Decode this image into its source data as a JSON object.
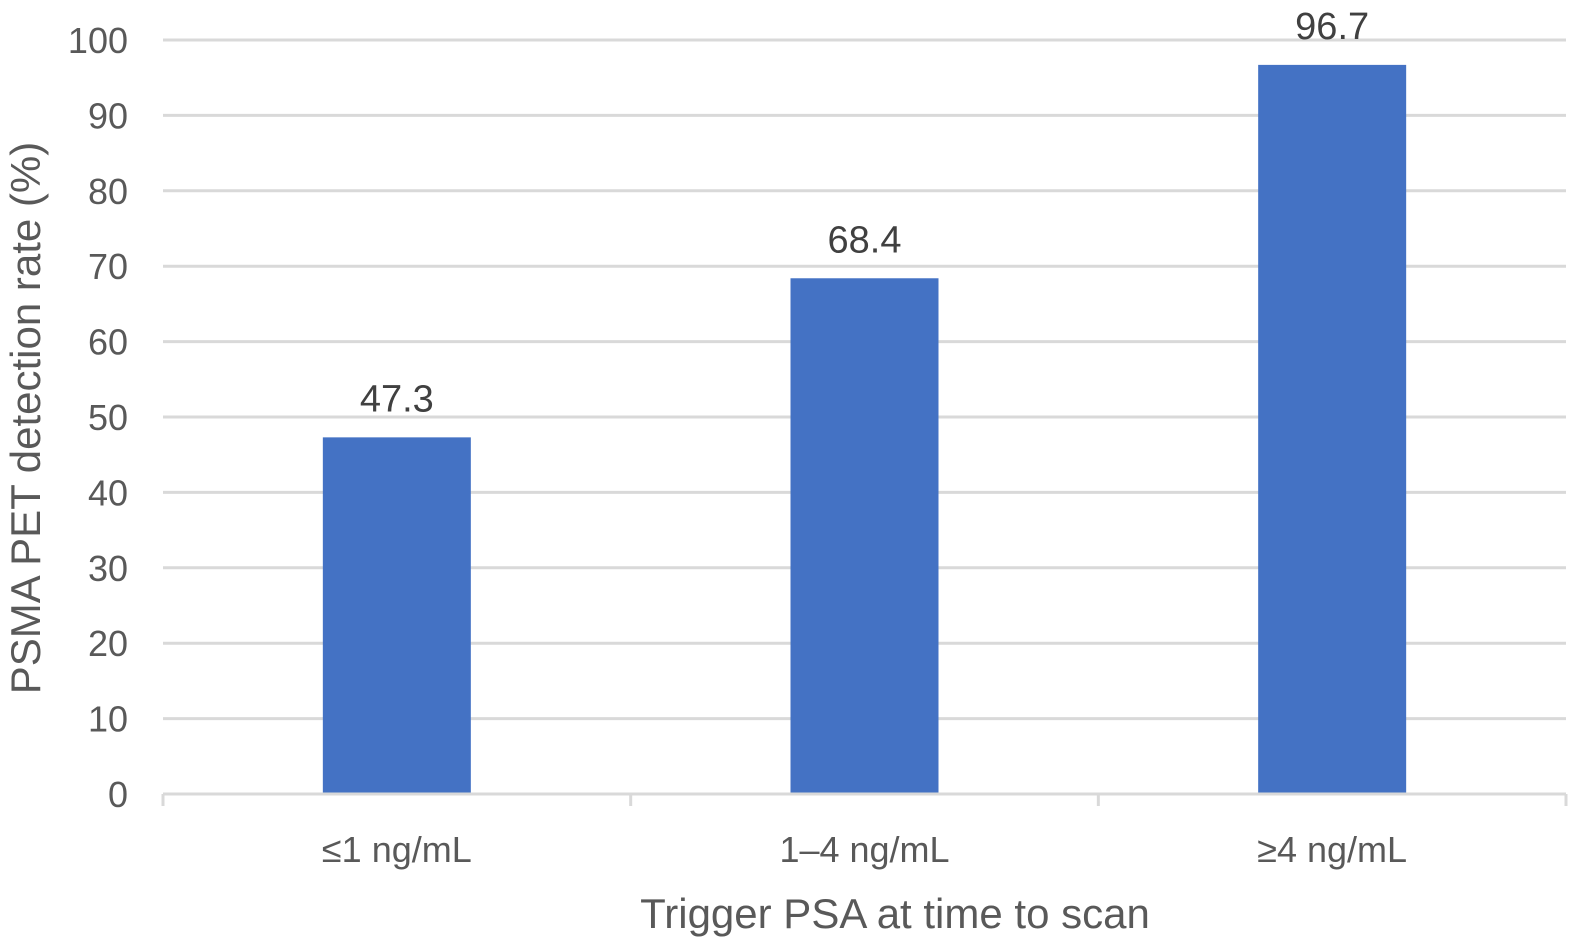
{
  "chart_data": {
    "type": "bar",
    "categories": [
      "≤1 ng/mL",
      "1–4 ng/mL",
      "≥4 ng/mL"
    ],
    "values": [
      47.3,
      68.4,
      96.7
    ],
    "data_labels": [
      "47.3",
      "68.4",
      "96.7"
    ],
    "xlabel": "Trigger PSA at time to scan",
    "ylabel": "PSMA PET detection rate (%)",
    "ylim": [
      0,
      100
    ],
    "yticks": [
      0,
      10,
      20,
      30,
      40,
      50,
      60,
      70,
      80,
      90,
      100
    ],
    "grid": true,
    "bar_color": "#4472c4"
  }
}
